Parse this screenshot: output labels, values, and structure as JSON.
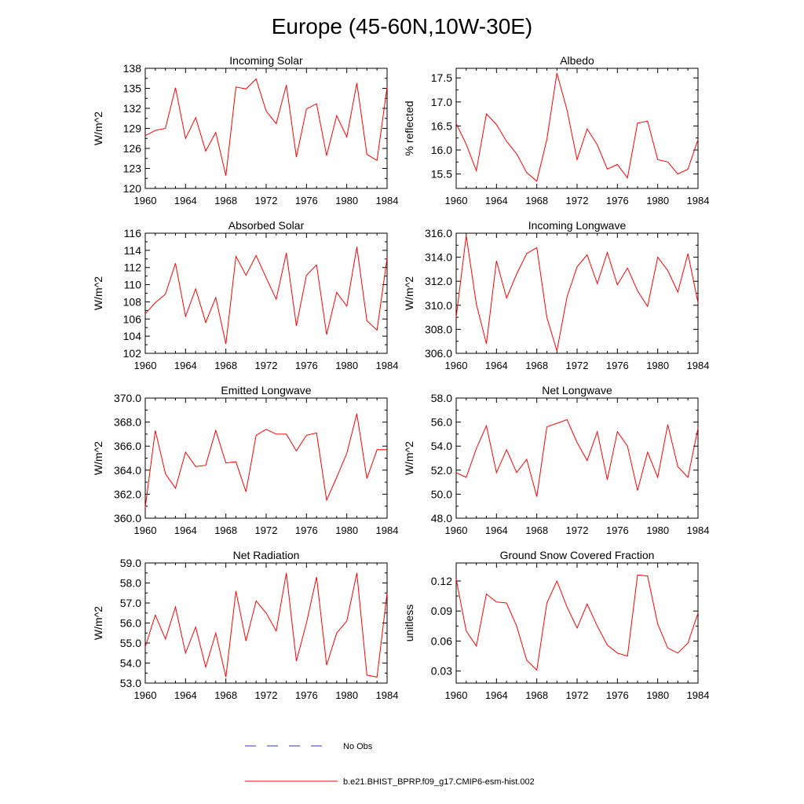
{
  "figure": {
    "title": "Europe (45-60N,10W-30E)",
    "series_color": "#ff0000",
    "obs_color": "#3333cc"
  },
  "legend": {
    "obs_label": "No Obs",
    "model_label": "b.e21.BHIST_BPRP.f09_g17.CMIP6-esm-hist.002"
  },
  "chart_data": [
    {
      "type": "line",
      "title": "Incoming Solar",
      "xlabel": "",
      "ylabel": "W/m^2",
      "xlim": [
        1960,
        1984
      ],
      "ylim": [
        120,
        138
      ],
      "xticks": [
        1960,
        1964,
        1968,
        1972,
        1976,
        1980,
        1984
      ],
      "yticks": [
        120,
        123,
        126,
        129,
        132,
        135,
        138
      ],
      "ytick_labels": [
        "120",
        "123",
        "126",
        "129",
        "132",
        "135",
        "138"
      ],
      "x": [
        1960,
        1961,
        1962,
        1963,
        1964,
        1965,
        1966,
        1967,
        1968,
        1969,
        1970,
        1971,
        1972,
        1973,
        1974,
        1975,
        1976,
        1977,
        1978,
        1979,
        1980,
        1981,
        1982,
        1983,
        1984
      ],
      "series": [
        {
          "name": "b.e21.BHIST_BPRP.f09_g17.CMIP6-esm-hist.002",
          "values": [
            127.9,
            128.7,
            129.0,
            135.1,
            127.5,
            130.6,
            125.6,
            128.4,
            121.9,
            135.2,
            134.9,
            136.4,
            131.6,
            129.7,
            135.5,
            124.7,
            131.9,
            132.7,
            124.9,
            130.9,
            127.7,
            135.8,
            125.1,
            124.2,
            135.2
          ]
        }
      ]
    },
    {
      "type": "line",
      "title": "Albedo",
      "xlabel": "",
      "ylabel": "% reflected",
      "xlim": [
        1960,
        1984
      ],
      "ylim": [
        15.2,
        17.7
      ],
      "xticks": [
        1960,
        1964,
        1968,
        1972,
        1976,
        1980,
        1984
      ],
      "yticks": [
        15.5,
        16.0,
        16.5,
        17.0,
        17.5
      ],
      "ytick_labels": [
        "15.5",
        "16.0",
        "16.5",
        "17.0",
        "17.5"
      ],
      "x": [
        1960,
        1961,
        1962,
        1963,
        1964,
        1965,
        1966,
        1967,
        1968,
        1969,
        1970,
        1971,
        1972,
        1973,
        1974,
        1975,
        1976,
        1977,
        1978,
        1979,
        1980,
        1981,
        1982,
        1983,
        1984
      ],
      "series": [
        {
          "name": "b.e21.BHIST_BPRP.f09_g17.CMIP6-esm-hist.002",
          "values": [
            16.55,
            16.12,
            15.57,
            16.75,
            16.53,
            16.18,
            15.92,
            15.53,
            15.35,
            16.22,
            17.6,
            16.83,
            15.8,
            16.44,
            16.11,
            15.6,
            15.7,
            15.42,
            16.56,
            16.6,
            15.8,
            15.75,
            15.5,
            15.6,
            16.22
          ]
        }
      ]
    },
    {
      "type": "line",
      "title": "Absorbed Solar",
      "xlabel": "",
      "ylabel": "W/m^2",
      "xlim": [
        1960,
        1984
      ],
      "ylim": [
        102,
        116
      ],
      "xticks": [
        1960,
        1964,
        1968,
        1972,
        1976,
        1980,
        1984
      ],
      "yticks": [
        102,
        104,
        106,
        108,
        110,
        112,
        114,
        116
      ],
      "ytick_labels": [
        "102",
        "104",
        "106",
        "108",
        "110",
        "112",
        "114",
        "116"
      ],
      "x": [
        1960,
        1961,
        1962,
        1963,
        1964,
        1965,
        1966,
        1967,
        1968,
        1969,
        1970,
        1971,
        1972,
        1973,
        1974,
        1975,
        1976,
        1977,
        1978,
        1979,
        1980,
        1981,
        1982,
        1983,
        1984
      ],
      "series": [
        {
          "name": "b.e21.BHIST_BPRP.f09_g17.CMIP6-esm-hist.002",
          "values": [
            106.6,
            107.9,
            108.9,
            112.5,
            106.3,
            109.5,
            105.6,
            108.5,
            103.1,
            113.3,
            111.1,
            113.4,
            110.8,
            108.3,
            113.7,
            105.2,
            111.1,
            112.3,
            104.2,
            109.1,
            107.5,
            114.4,
            105.8,
            104.7,
            113.1
          ]
        }
      ]
    },
    {
      "type": "line",
      "title": "Incoming Longwave",
      "xlabel": "",
      "ylabel": "W/m^2",
      "xlim": [
        1960,
        1984
      ],
      "ylim": [
        306.0,
        316.0
      ],
      "xticks": [
        1960,
        1964,
        1968,
        1972,
        1976,
        1980,
        1984
      ],
      "yticks": [
        306,
        308,
        310,
        312,
        314,
        316
      ],
      "ytick_labels": [
        "306.0",
        "308.0",
        "310.0",
        "312.0",
        "314.0",
        "316.0"
      ],
      "x": [
        1960,
        1961,
        1962,
        1963,
        1964,
        1965,
        1966,
        1967,
        1968,
        1969,
        1970,
        1971,
        1972,
        1973,
        1974,
        1975,
        1976,
        1977,
        1978,
        1979,
        1980,
        1981,
        1982,
        1983,
        1984
      ],
      "series": [
        {
          "name": "b.e21.BHIST_BPRP.f09_g17.CMIP6-esm-hist.002",
          "values": [
            309.0,
            315.8,
            310.1,
            306.8,
            313.7,
            310.6,
            312.6,
            314.3,
            314.8,
            309.0,
            306.2,
            310.7,
            313.2,
            314.2,
            311.8,
            314.4,
            311.7,
            313.1,
            311.2,
            309.9,
            314.0,
            312.9,
            311.1,
            314.3,
            310.2
          ]
        }
      ]
    },
    {
      "type": "line",
      "title": "Emitted Longwave",
      "xlabel": "",
      "ylabel": "W/m^2",
      "xlim": [
        1960,
        1984
      ],
      "ylim": [
        360.0,
        370.0
      ],
      "xticks": [
        1960,
        1964,
        1968,
        1972,
        1976,
        1980,
        1984
      ],
      "yticks": [
        360,
        362,
        364,
        366,
        368,
        370
      ],
      "ytick_labels": [
        "360.0",
        "362.0",
        "364.0",
        "366.0",
        "368.0",
        "370.0"
      ],
      "x": [
        1960,
        1961,
        1962,
        1963,
        1964,
        1965,
        1966,
        1967,
        1968,
        1969,
        1970,
        1971,
        1972,
        1973,
        1974,
        1975,
        1976,
        1977,
        1978,
        1979,
        1980,
        1981,
        1982,
        1983,
        1984
      ],
      "series": [
        {
          "name": "b.e21.BHIST_BPRP.f09_g17.CMIP6-esm-hist.002",
          "values": [
            360.9,
            367.3,
            363.7,
            362.5,
            365.5,
            364.3,
            364.4,
            367.3,
            364.6,
            364.7,
            362.2,
            366.9,
            367.4,
            367.0,
            367.0,
            365.6,
            366.9,
            367.1,
            361.5,
            363.4,
            365.4,
            368.7,
            363.3,
            365.7,
            365.7
          ]
        }
      ]
    },
    {
      "type": "line",
      "title": "Net Longwave",
      "xlabel": "",
      "ylabel": "W/m^2",
      "xlim": [
        1960,
        1984
      ],
      "ylim": [
        48.0,
        58.0
      ],
      "xticks": [
        1960,
        1964,
        1968,
        1972,
        1976,
        1980,
        1984
      ],
      "yticks": [
        48,
        50,
        52,
        54,
        56,
        58
      ],
      "ytick_labels": [
        "48.0",
        "50.0",
        "52.0",
        "54.0",
        "56.0",
        "58.0"
      ],
      "x": [
        1960,
        1961,
        1962,
        1963,
        1964,
        1965,
        1966,
        1967,
        1968,
        1969,
        1970,
        1971,
        1972,
        1973,
        1974,
        1975,
        1976,
        1977,
        1978,
        1979,
        1980,
        1981,
        1982,
        1983,
        1984
      ],
      "series": [
        {
          "name": "b.e21.BHIST_BPRP.f09_g17.CMIP6-esm-hist.002",
          "values": [
            51.8,
            51.4,
            53.8,
            55.7,
            51.8,
            53.7,
            51.8,
            52.9,
            49.8,
            55.6,
            55.9,
            56.2,
            54.3,
            52.8,
            55.2,
            51.2,
            55.2,
            54.0,
            50.3,
            53.5,
            51.4,
            55.8,
            52.3,
            51.4,
            55.5
          ]
        }
      ]
    },
    {
      "type": "line",
      "title": "Net Radiation",
      "xlabel": "",
      "ylabel": "W/m^2",
      "xlim": [
        1960,
        1984
      ],
      "ylim": [
        53.0,
        59.0
      ],
      "xticks": [
        1960,
        1964,
        1968,
        1972,
        1976,
        1980,
        1984
      ],
      "yticks": [
        53,
        54,
        55,
        56,
        57,
        58,
        59
      ],
      "ytick_labels": [
        "53.0",
        "54.0",
        "55.0",
        "56.0",
        "57.0",
        "58.0",
        "59.0"
      ],
      "x": [
        1960,
        1961,
        1962,
        1963,
        1964,
        1965,
        1966,
        1967,
        1968,
        1969,
        1970,
        1971,
        1972,
        1973,
        1974,
        1975,
        1976,
        1977,
        1978,
        1979,
        1980,
        1981,
        1982,
        1983,
        1984
      ],
      "series": [
        {
          "name": "b.e21.BHIST_BPRP.f09_g17.CMIP6-esm-hist.002",
          "values": [
            54.8,
            56.4,
            55.2,
            56.8,
            54.5,
            55.8,
            53.8,
            55.5,
            53.3,
            57.6,
            55.1,
            57.1,
            56.5,
            55.6,
            58.5,
            54.1,
            56.0,
            58.3,
            53.9,
            55.5,
            56.1,
            58.5,
            53.4,
            53.3,
            57.5
          ]
        }
      ]
    },
    {
      "type": "line",
      "title": "Ground Snow Covered Fraction",
      "xlabel": "",
      "ylabel": "unitless",
      "xlim": [
        1960,
        1984
      ],
      "ylim": [
        0.018,
        0.138
      ],
      "xticks": [
        1960,
        1964,
        1968,
        1972,
        1976,
        1980,
        1984
      ],
      "yticks": [
        0.03,
        0.06,
        0.09,
        0.12
      ],
      "ytick_labels": [
        "0.03",
        "0.06",
        "0.09",
        "0.12"
      ],
      "x": [
        1960,
        1961,
        1962,
        1963,
        1964,
        1965,
        1966,
        1967,
        1968,
        1969,
        1970,
        1971,
        1972,
        1973,
        1974,
        1975,
        1976,
        1977,
        1978,
        1979,
        1980,
        1981,
        1982,
        1983,
        1984
      ],
      "series": [
        {
          "name": "b.e21.BHIST_BPRP.f09_g17.CMIP6-esm-hist.002",
          "values": [
            0.122,
            0.07,
            0.055,
            0.107,
            0.099,
            0.098,
            0.075,
            0.041,
            0.031,
            0.098,
            0.12,
            0.094,
            0.073,
            0.097,
            0.075,
            0.056,
            0.048,
            0.045,
            0.126,
            0.125,
            0.077,
            0.053,
            0.048,
            0.058,
            0.088
          ]
        }
      ]
    }
  ]
}
